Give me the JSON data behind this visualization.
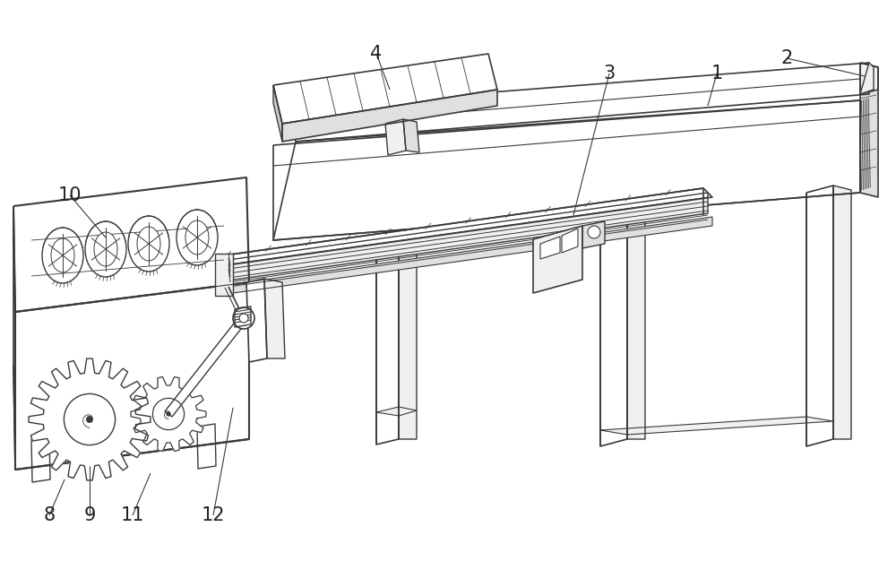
{
  "bg_color": "#ffffff",
  "lc": "#3a3a3a",
  "lc2": "#555555",
  "figsize": [
    10.0,
    6.26
  ],
  "dpi": 100,
  "label_fs": 15,
  "label_color": "#222222",
  "fill_white": "#ffffff",
  "fill_light": "#f0f0f0",
  "fill_mid": "#e0e0e0",
  "fill_dark": "#cccccc"
}
